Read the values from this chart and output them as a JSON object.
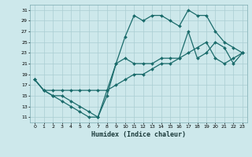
{
  "xlabel": "Humidex (Indice chaleur)",
  "bg_color": "#cde8eb",
  "grid_color": "#aacdd2",
  "line_color": "#1a6b6b",
  "xlim": [
    -0.5,
    23.5
  ],
  "ylim": [
    10,
    32
  ],
  "xticks": [
    0,
    1,
    2,
    3,
    4,
    5,
    6,
    7,
    8,
    9,
    10,
    11,
    12,
    13,
    14,
    15,
    16,
    17,
    18,
    19,
    20,
    21,
    22,
    23
  ],
  "yticks": [
    11,
    13,
    15,
    17,
    19,
    21,
    23,
    25,
    27,
    29,
    31
  ],
  "line1_x": [
    0,
    1,
    2,
    3,
    4,
    5,
    6,
    7,
    8,
    9,
    10,
    11,
    12,
    13,
    14,
    15,
    16,
    17,
    18,
    19,
    20,
    21,
    22,
    23
  ],
  "line1_y": [
    18,
    16,
    15,
    14,
    13,
    12,
    11,
    11,
    15,
    21,
    26,
    30,
    29,
    30,
    30,
    29,
    28,
    31,
    30,
    30,
    27,
    25,
    24,
    23
  ],
  "line2_x": [
    0,
    1,
    2,
    3,
    4,
    5,
    6,
    7,
    8,
    9,
    10,
    11,
    12,
    13,
    14,
    15,
    16,
    17,
    18,
    19,
    20,
    21,
    22,
    23
  ],
  "line2_y": [
    18,
    16,
    15,
    15,
    14,
    13,
    12,
    11,
    16,
    21,
    22,
    21,
    21,
    21,
    22,
    22,
    22,
    27,
    22,
    23,
    25,
    24,
    21,
    23
  ],
  "line3_x": [
    0,
    1,
    2,
    3,
    4,
    5,
    6,
    7,
    8,
    9,
    10,
    11,
    12,
    13,
    14,
    15,
    16,
    17,
    18,
    19,
    20,
    21,
    22,
    23
  ],
  "line3_y": [
    18,
    16,
    16,
    16,
    16,
    16,
    16,
    16,
    16,
    17,
    18,
    19,
    19,
    20,
    21,
    21,
    22,
    23,
    24,
    25,
    22,
    21,
    22,
    23
  ]
}
